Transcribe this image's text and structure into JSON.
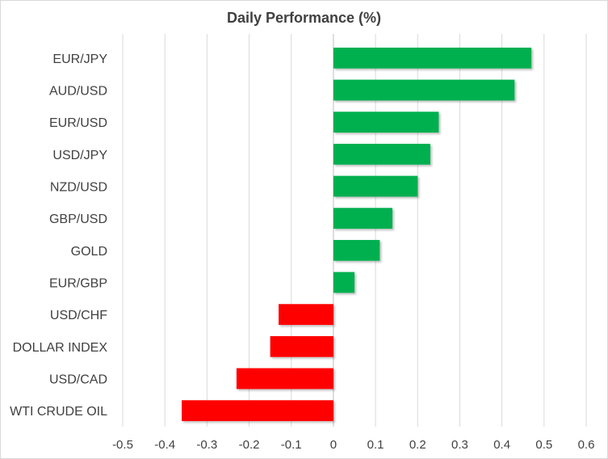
{
  "chart_data": {
    "type": "bar",
    "orientation": "horizontal",
    "title": "Daily Performance  (%)",
    "categories": [
      "EUR/JPY",
      "AUD/USD",
      "EUR/USD",
      "USD/JPY",
      "NZD/USD",
      "GBP/USD",
      "GOLD",
      "EUR/GBP",
      "USD/CHF",
      "DOLLAR INDEX",
      "USD/CAD",
      "WTI CRUDE OIL"
    ],
    "values": [
      0.47,
      0.43,
      0.25,
      0.23,
      0.2,
      0.14,
      0.11,
      0.05,
      -0.13,
      -0.15,
      -0.23,
      -0.36
    ],
    "xlim": [
      -0.5,
      0.6
    ],
    "xticks": [
      "-0.5",
      "-0.4",
      "-0.3",
      "-0.2",
      "-0.1",
      "0",
      "0.1",
      "0.2",
      "0.3",
      "0.4",
      "0.5",
      "0.6"
    ],
    "grid": true,
    "colors": {
      "positive": "#00b050",
      "negative": "#ff0000",
      "grid": "#d9d9d9",
      "text": "#404040"
    }
  }
}
